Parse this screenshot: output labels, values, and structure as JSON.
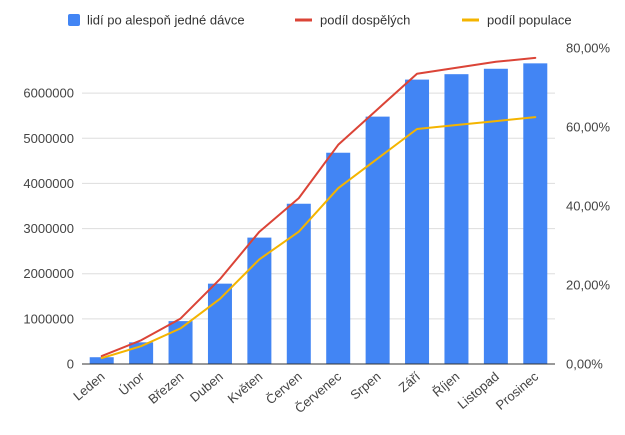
{
  "chart_data": {
    "type": "bar",
    "title": "",
    "xlabel": "",
    "ylabel": "",
    "categories": [
      "Leden",
      "Únor",
      "Březen",
      "Duben",
      "Květen",
      "Červen",
      "Červenec",
      "Srpen",
      "Září",
      "Říjen",
      "Listopad",
      "Prosinec"
    ],
    "ylim": [
      0,
      7000000
    ],
    "y2lim": [
      0,
      80
    ],
    "left_ticks": [
      {
        "value": 0,
        "label": "0"
      },
      {
        "value": 1000000,
        "label": "1000000"
      },
      {
        "value": 2000000,
        "label": "2000000"
      },
      {
        "value": 3000000,
        "label": "3000000"
      },
      {
        "value": 4000000,
        "label": "4000000"
      },
      {
        "value": 5000000,
        "label": "5000000"
      },
      {
        "value": 6000000,
        "label": "6000000"
      }
    ],
    "right_ticks": [
      {
        "value": 0,
        "label": "0,00%"
      },
      {
        "value": 20,
        "label": "20,00%"
      },
      {
        "value": 40,
        "label": "40,00%"
      },
      {
        "value": 60,
        "label": "60,00%"
      },
      {
        "value": 80,
        "label": "80,00%"
      }
    ],
    "legend_position": "top",
    "series": [
      {
        "name": "lidí po alespoň jedné dávce",
        "kind": "bar",
        "axis": "left",
        "color": "#4285f4",
        "values": [
          150000,
          480000,
          950000,
          1780000,
          2800000,
          3550000,
          4680000,
          5480000,
          6300000,
          6420000,
          6540000,
          6660000
        ]
      },
      {
        "name": "podíl dospělých",
        "kind": "line",
        "axis": "right",
        "color": "#db4437",
        "values": [
          2.0,
          6.0,
          11.5,
          21.5,
          33.5,
          42.0,
          55.5,
          64.5,
          73.5,
          75.0,
          76.5,
          77.5
        ]
      },
      {
        "name": "podíl populace",
        "kind": "line",
        "axis": "right",
        "color": "#f4b400",
        "values": [
          1.5,
          4.5,
          9.0,
          16.5,
          26.5,
          33.5,
          44.5,
          52.0,
          59.5,
          60.5,
          61.5,
          62.5
        ]
      }
    ]
  }
}
